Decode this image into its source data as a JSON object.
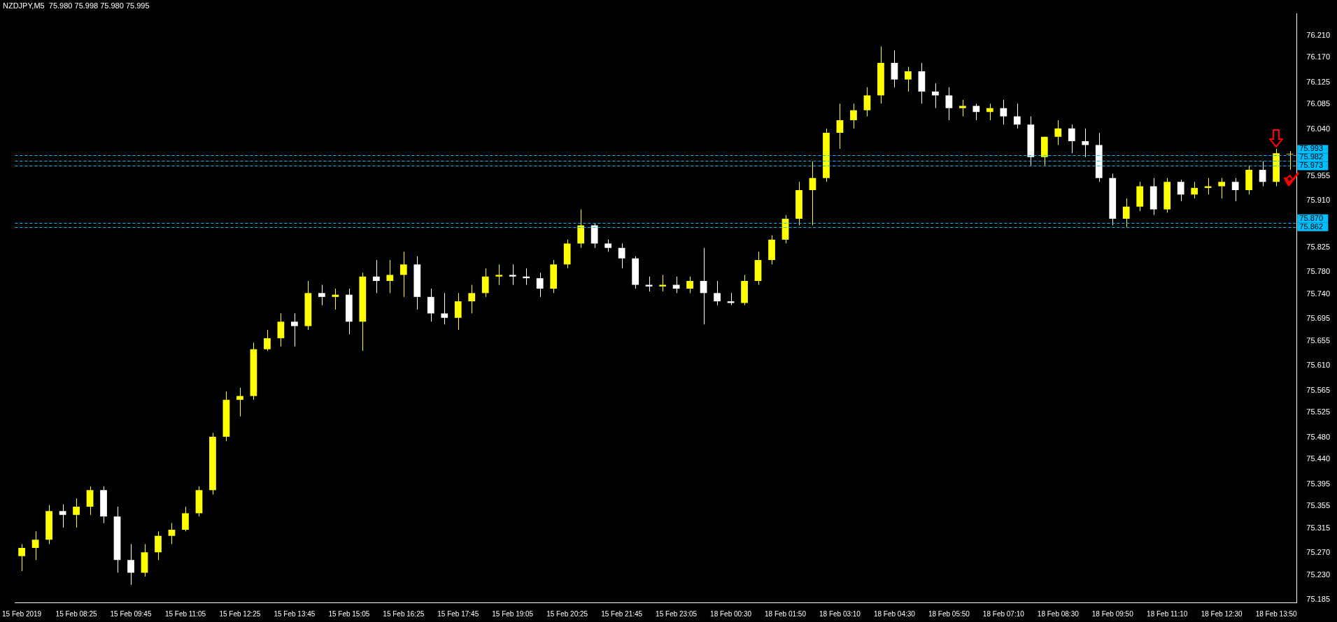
{
  "chart_data": {
    "type": "candlestick",
    "title": "NZDJPY,M5  75.980 75.998 75.980 75.995",
    "categories": [
      "15 Feb 2019",
      null,
      null,
      null,
      "15 Feb 08:25",
      null,
      null,
      null,
      "15 Feb 09:45",
      null,
      null,
      null,
      "15 Feb 11:05",
      null,
      null,
      null,
      "15 Feb 12:25",
      null,
      null,
      null,
      "15 Feb 13:45",
      null,
      null,
      null,
      "15 Feb 15:05",
      null,
      null,
      null,
      "15 Feb 16:25",
      null,
      null,
      null,
      "15 Feb 17:45",
      null,
      null,
      null,
      "15 Feb 19:05",
      null,
      null,
      null,
      "15 Feb 20:25",
      null,
      null,
      null,
      "15 Feb 21:45",
      null,
      null,
      null,
      "15 Feb 23:05",
      null,
      null,
      null,
      "18 Feb 00:30",
      null,
      null,
      null,
      "18 Feb 01:50",
      null,
      null,
      null,
      "18 Feb 03:10",
      null,
      null,
      null,
      "18 Feb 04:30",
      null,
      null,
      null,
      "18 Feb 05:50",
      null,
      null,
      null,
      "18 Feb 07:10",
      null,
      null,
      null,
      "18 Feb 08:30",
      null,
      null,
      null,
      "18 Feb 09:50",
      null,
      null,
      null,
      "18 Feb 11:10",
      null,
      null,
      null,
      "18 Feb 12:30",
      null,
      null,
      null,
      "18 Feb 13:50",
      null
    ],
    "ohlc": [
      [
        75.264,
        75.286,
        75.237,
        75.279
      ],
      [
        75.279,
        75.309,
        75.257,
        75.294
      ],
      [
        75.294,
        75.357,
        75.286,
        75.346
      ],
      [
        75.346,
        75.358,
        75.316,
        75.339
      ],
      [
        75.339,
        75.369,
        75.316,
        75.354
      ],
      [
        75.354,
        75.391,
        75.339,
        75.384
      ],
      [
        75.384,
        75.391,
        75.324,
        75.336
      ],
      [
        75.336,
        75.354,
        75.234,
        75.257
      ],
      [
        75.257,
        75.286,
        75.212,
        75.234
      ],
      [
        75.234,
        75.286,
        75.227,
        75.271
      ],
      [
        75.271,
        75.309,
        75.257,
        75.301
      ],
      [
        75.301,
        75.324,
        75.286,
        75.312
      ],
      [
        75.312,
        75.354,
        75.309,
        75.342
      ],
      [
        75.342,
        75.391,
        75.336,
        75.384
      ],
      [
        75.384,
        75.488,
        75.376,
        75.481
      ],
      [
        75.481,
        75.563,
        75.473,
        75.548
      ],
      [
        75.548,
        75.57,
        75.518,
        75.555
      ],
      [
        75.555,
        75.652,
        75.548,
        75.64
      ],
      [
        75.64,
        75.675,
        75.637,
        75.66
      ],
      [
        75.66,
        75.705,
        75.645,
        75.69
      ],
      [
        75.69,
        75.705,
        75.645,
        75.682
      ],
      [
        75.682,
        75.764,
        75.675,
        75.742
      ],
      [
        75.742,
        75.757,
        75.72,
        75.735
      ],
      [
        75.735,
        75.75,
        75.712,
        75.739
      ],
      [
        75.739,
        75.75,
        75.667,
        75.69
      ],
      [
        75.69,
        75.779,
        75.637,
        75.772
      ],
      [
        75.772,
        75.802,
        75.742,
        75.764
      ],
      [
        75.764,
        75.802,
        75.742,
        75.775
      ],
      [
        75.775,
        75.817,
        75.735,
        75.794
      ],
      [
        75.794,
        75.809,
        75.712,
        75.735
      ],
      [
        75.735,
        75.75,
        75.69,
        75.705
      ],
      [
        75.705,
        75.742,
        75.685,
        75.697
      ],
      [
        75.697,
        75.742,
        75.675,
        75.727
      ],
      [
        75.727,
        75.757,
        75.705,
        75.742
      ],
      [
        75.742,
        75.787,
        75.735,
        75.772
      ],
      [
        75.772,
        75.794,
        75.757,
        75.775
      ],
      [
        75.775,
        75.794,
        75.757,
        75.772
      ],
      [
        75.772,
        75.787,
        75.757,
        75.769
      ],
      [
        75.769,
        75.779,
        75.735,
        75.75
      ],
      [
        75.75,
        75.802,
        75.742,
        75.794
      ],
      [
        75.794,
        75.839,
        75.787,
        75.832
      ],
      [
        75.832,
        75.894,
        75.824,
        75.865
      ],
      [
        75.865,
        75.869,
        75.824,
        75.832
      ],
      [
        75.832,
        75.839,
        75.817,
        75.824
      ],
      [
        75.824,
        75.832,
        75.787,
        75.805
      ],
      [
        75.805,
        75.809,
        75.75,
        75.757
      ],
      [
        75.757,
        75.772,
        75.745,
        75.754
      ],
      [
        75.754,
        75.775,
        75.745,
        75.757
      ],
      [
        75.757,
        75.772,
        75.742,
        75.75
      ],
      [
        75.75,
        75.772,
        75.742,
        75.764
      ],
      [
        75.764,
        75.824,
        75.685,
        75.742
      ],
      [
        75.742,
        75.764,
        75.72,
        75.727
      ],
      [
        75.727,
        75.742,
        75.72,
        75.724
      ],
      [
        75.724,
        75.775,
        75.72,
        75.764
      ],
      [
        75.764,
        75.817,
        75.757,
        75.802
      ],
      [
        75.802,
        75.847,
        75.794,
        75.839
      ],
      [
        75.839,
        75.884,
        75.832,
        75.877
      ],
      [
        75.877,
        75.944,
        75.865,
        75.929
      ],
      [
        75.929,
        75.981,
        75.865,
        75.951
      ],
      [
        75.951,
        76.041,
        75.944,
        76.033
      ],
      [
        76.033,
        76.086,
        76.004,
        76.056
      ],
      [
        76.056,
        76.086,
        76.041,
        76.074
      ],
      [
        76.074,
        76.116,
        76.063,
        76.101
      ],
      [
        76.101,
        76.19,
        76.086,
        76.16
      ],
      [
        76.16,
        76.183,
        76.116,
        76.13
      ],
      [
        76.13,
        76.153,
        76.108,
        76.145
      ],
      [
        76.145,
        76.16,
        76.086,
        76.108
      ],
      [
        76.108,
        76.123,
        76.078,
        76.101
      ],
      [
        76.101,
        76.116,
        76.056,
        76.078
      ],
      [
        76.078,
        76.093,
        76.063,
        76.082
      ],
      [
        76.082,
        76.086,
        76.056,
        76.071
      ],
      [
        76.071,
        76.086,
        76.056,
        76.078
      ],
      [
        76.078,
        76.093,
        76.048,
        76.063
      ],
      [
        76.063,
        76.086,
        76.041,
        76.048
      ],
      [
        76.048,
        76.063,
        75.974,
        75.989
      ],
      [
        75.989,
        76.026,
        75.974,
        76.026
      ],
      [
        76.026,
        76.056,
        76.011,
        76.041
      ],
      [
        76.041,
        76.048,
        75.996,
        76.018
      ],
      [
        76.018,
        76.041,
        75.989,
        76.011
      ],
      [
        76.011,
        76.033,
        75.944,
        75.951
      ],
      [
        75.951,
        75.959,
        75.865,
        75.877
      ],
      [
        75.877,
        75.914,
        75.862,
        75.899
      ],
      [
        75.899,
        75.944,
        75.891,
        75.936
      ],
      [
        75.936,
        75.951,
        75.884,
        75.894
      ],
      [
        75.894,
        75.951,
        75.888,
        75.944
      ],
      [
        75.944,
        75.948,
        75.909,
        75.921
      ],
      [
        75.921,
        75.944,
        75.914,
        75.933
      ],
      [
        75.933,
        75.951,
        75.921,
        75.936
      ],
      [
        75.936,
        75.951,
        75.914,
        75.944
      ],
      [
        75.944,
        75.951,
        75.909,
        75.929
      ],
      [
        75.929,
        75.974,
        75.921,
        75.966
      ],
      [
        75.966,
        75.981,
        75.936,
        75.944
      ],
      [
        75.944,
        76.004,
        75.936,
        75.996
      ],
      [
        75.994,
        76.0,
        75.966,
        75.995
      ]
    ],
    "colors": [
      "#ffff00",
      "#ffff00",
      "#ffff00",
      "#ffffff",
      "#ffff00",
      "#ffff00",
      "#ffffff",
      "#ffffff",
      "#ffffff",
      "#ffff00",
      "#ffff00",
      "#ffff00",
      "#ffff00",
      "#ffff00",
      "#ffff00",
      "#ffff00",
      "#ffff00",
      "#ffff00",
      "#ffff00",
      "#ffff00",
      "#ffffff",
      "#ffff00",
      "#ffffff",
      "#ffff00",
      "#ffffff",
      "#ffff00",
      "#ffffff",
      "#ffff00",
      "#ffff00",
      "#ffffff",
      "#ffffff",
      "#ffffff",
      "#ffff00",
      "#ffff00",
      "#ffff00",
      "#ffff00",
      "#ffffff",
      "#ffffff",
      "#ffffff",
      "#ffff00",
      "#ffff00",
      "#ffff00",
      "#ffffff",
      "#ffffff",
      "#ffffff",
      "#ffffff",
      "#ffffff",
      "#ffff00",
      "#ffffff",
      "#ffff00",
      "#ffffff",
      "#ffffff",
      "#ffffff",
      "#ffff00",
      "#ffff00",
      "#ffff00",
      "#ffff00",
      "#ffff00",
      "#ffff00",
      "#ffff00",
      "#ffff00",
      "#ffff00",
      "#ffff00",
      "#ffff00",
      "#ffffff",
      "#ffff00",
      "#ffffff",
      "#ffffff",
      "#ffffff",
      "#ffff00",
      "#ffffff",
      "#ffff00",
      "#ffffff",
      "#ffffff",
      "#ffffff",
      "#ffff00",
      "#ffff00",
      "#ffffff",
      "#ffffff",
      "#ffffff",
      "#ffffff",
      "#ffff00",
      "#ffff00",
      "#ffffff",
      "#ffff00",
      "#ffffff",
      "#ffff00",
      "#ffff00",
      "#ffff00",
      "#ffffff",
      "#ffff00",
      "#ffffff",
      "#ffff00",
      "#ffff00"
    ],
    "ylim": [
      75.18,
      76.25
    ],
    "yticks": [
      {
        "value": 75.185,
        "label": "75.185"
      },
      {
        "value": 75.23,
        "label": "75.230"
      },
      {
        "value": 75.27,
        "label": "75.270"
      },
      {
        "value": 75.315,
        "label": "75.315"
      },
      {
        "value": 75.355,
        "label": "75.355"
      },
      {
        "value": 75.395,
        "label": "75.395"
      },
      {
        "value": 75.44,
        "label": "75.440"
      },
      {
        "value": 75.48,
        "label": "75.480"
      },
      {
        "value": 75.525,
        "label": "75.525"
      },
      {
        "value": 75.565,
        "label": "75.565"
      },
      {
        "value": 75.61,
        "label": "75.610"
      },
      {
        "value": 75.655,
        "label": "75.655"
      },
      {
        "value": 75.695,
        "label": "75.695"
      },
      {
        "value": 75.74,
        "label": "75.740"
      },
      {
        "value": 75.78,
        "label": "75.780"
      },
      {
        "value": 75.825,
        "label": "75.825"
      },
      {
        "value": 75.91,
        "label": "75.910"
      },
      {
        "value": 75.955,
        "label": "75.955"
      },
      {
        "value": 76.04,
        "label": "76.040"
      },
      {
        "value": 76.085,
        "label": "76.085"
      },
      {
        "value": 76.125,
        "label": "76.125"
      },
      {
        "value": 76.17,
        "label": "76.170"
      },
      {
        "value": 76.21,
        "label": "76.210"
      }
    ],
    "ref_lines": [
      {
        "axis": "y",
        "value": 75.993,
        "label": "75.993",
        "color": "#00bfff",
        "line_style": "dashed"
      },
      {
        "axis": "y",
        "value": 75.982,
        "label": "75.982",
        "color": "#00bfff",
        "line_style": "dashed"
      },
      {
        "axis": "y",
        "value": 75.973,
        "label": "75.973",
        "color": "#00bfff",
        "line_style": "dashed"
      },
      {
        "axis": "y",
        "value": 75.87,
        "label": "75.870",
        "color": "#00bfff",
        "line_style": "dashed"
      },
      {
        "axis": "y",
        "value": 75.862,
        "label": "75.862",
        "color": "#00bfff",
        "line_style": "dashed"
      }
    ],
    "legend": false
  }
}
